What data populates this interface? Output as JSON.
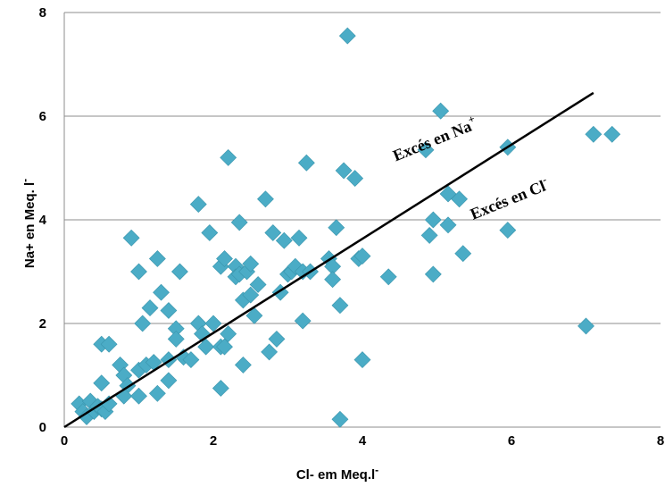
{
  "chart_data": {
    "type": "scatter",
    "title": "",
    "xlabel": "Cl- em Meq.l",
    "xlabel_sup": "-",
    "ylabel": "Na+  en Meq. l",
    "ylabel_sup": "-",
    "xlim": [
      0,
      8
    ],
    "ylim": [
      0,
      8
    ],
    "xticks": [
      "0",
      "2",
      "4",
      "6",
      "8"
    ],
    "yticks": [
      "0",
      "2",
      "4",
      "6",
      "8"
    ],
    "grid": "horizontal",
    "marker_color": "#4BACC6",
    "line_color": "#000000",
    "trend_line": {
      "x": [
        0,
        7.1
      ],
      "y": [
        0,
        6.45
      ]
    },
    "annotations": [
      {
        "text": "Excés en Na",
        "sup": "+",
        "x": 5.0,
        "y": 5.45,
        "angle": -22
      },
      {
        "text": "Excés en Cl",
        "sup": "-",
        "x": 6.0,
        "y": 4.3,
        "angle": -22
      }
    ],
    "points": [
      [
        0.2,
        0.45
      ],
      [
        0.25,
        0.3
      ],
      [
        0.3,
        0.2
      ],
      [
        0.35,
        0.5
      ],
      [
        0.4,
        0.3
      ],
      [
        0.45,
        0.4
      ],
      [
        0.5,
        0.35
      ],
      [
        0.5,
        0.85
      ],
      [
        0.55,
        0.3
      ],
      [
        0.6,
        0.45
      ],
      [
        0.5,
        1.6
      ],
      [
        0.6,
        1.6
      ],
      [
        0.75,
        1.2
      ],
      [
        0.8,
        1.0
      ],
      [
        0.85,
        0.8
      ],
      [
        0.8,
        0.6
      ],
      [
        0.9,
        3.65
      ],
      [
        1.0,
        3.0
      ],
      [
        1.0,
        1.1
      ],
      [
        1.05,
        2.0
      ],
      [
        1.0,
        0.6
      ],
      [
        1.1,
        1.2
      ],
      [
        1.15,
        2.3
      ],
      [
        1.2,
        1.25
      ],
      [
        1.25,
        3.25
      ],
      [
        1.3,
        2.6
      ],
      [
        1.25,
        0.65
      ],
      [
        1.4,
        2.25
      ],
      [
        1.4,
        0.9
      ],
      [
        1.4,
        1.3
      ],
      [
        1.5,
        1.9
      ],
      [
        1.5,
        1.7
      ],
      [
        1.55,
        3.0
      ],
      [
        1.6,
        1.35
      ],
      [
        1.7,
        1.3
      ],
      [
        1.8,
        4.3
      ],
      [
        1.8,
        2.0
      ],
      [
        1.85,
        1.8
      ],
      [
        1.9,
        1.55
      ],
      [
        1.95,
        3.75
      ],
      [
        2.0,
        2.0
      ],
      [
        2.1,
        1.55
      ],
      [
        2.1,
        3.1
      ],
      [
        2.15,
        3.25
      ],
      [
        2.2,
        5.2
      ],
      [
        2.15,
        1.55
      ],
      [
        2.2,
        1.8
      ],
      [
        2.1,
        0.75
      ],
      [
        2.3,
        3.1
      ],
      [
        2.3,
        2.9
      ],
      [
        2.35,
        2.95
      ],
      [
        2.35,
        3.95
      ],
      [
        2.4,
        2.45
      ],
      [
        2.4,
        1.2
      ],
      [
        2.45,
        3.0
      ],
      [
        2.5,
        3.15
      ],
      [
        2.5,
        2.55
      ],
      [
        2.55,
        2.15
      ],
      [
        2.6,
        2.75
      ],
      [
        2.7,
        4.4
      ],
      [
        2.75,
        1.45
      ],
      [
        2.8,
        3.75
      ],
      [
        2.85,
        1.7
      ],
      [
        2.9,
        2.6
      ],
      [
        2.95,
        3.6
      ],
      [
        3.0,
        2.95
      ],
      [
        3.05,
        3.0
      ],
      [
        3.1,
        3.1
      ],
      [
        3.15,
        3.65
      ],
      [
        3.2,
        2.05
      ],
      [
        3.25,
        5.1
      ],
      [
        3.2,
        3.0
      ],
      [
        3.3,
        3.0
      ],
      [
        3.55,
        3.25
      ],
      [
        3.6,
        3.1
      ],
      [
        3.6,
        2.85
      ],
      [
        3.65,
        3.85
      ],
      [
        3.7,
        2.35
      ],
      [
        3.7,
        0.15
      ],
      [
        3.75,
        4.95
      ],
      [
        3.8,
        7.55
      ],
      [
        3.9,
        4.8
      ],
      [
        3.95,
        3.25
      ],
      [
        4.0,
        3.3
      ],
      [
        4.0,
        1.3
      ],
      [
        4.35,
        2.9
      ],
      [
        4.85,
        5.35
      ],
      [
        4.9,
        3.7
      ],
      [
        4.95,
        4.0
      ],
      [
        4.95,
        2.95
      ],
      [
        5.05,
        6.1
      ],
      [
        5.15,
        4.5
      ],
      [
        5.15,
        3.9
      ],
      [
        5.3,
        4.4
      ],
      [
        5.35,
        3.35
      ],
      [
        5.95,
        5.4
      ],
      [
        5.95,
        3.8
      ],
      [
        7.0,
        1.95
      ],
      [
        7.1,
        5.65
      ],
      [
        7.35,
        5.65
      ]
    ]
  }
}
